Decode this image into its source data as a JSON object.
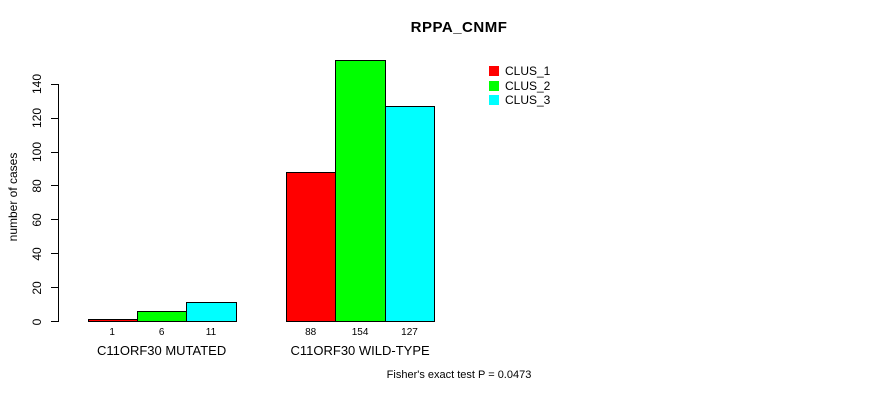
{
  "chart_data": {
    "type": "bar",
    "title": "RPPA_CNMF",
    "xlabel": "",
    "ylabel": "number of cases",
    "categories": [
      "C11ORF30 MUTATED",
      "C11ORF30 WILD-TYPE"
    ],
    "series": [
      {
        "name": "CLUS_1",
        "color": "#ff0000",
        "values": [
          1,
          88
        ]
      },
      {
        "name": "CLUS_2",
        "color": "#00ff00",
        "values": [
          6,
          154
        ]
      },
      {
        "name": "CLUS_3",
        "color": "#00ffff",
        "values": [
          11,
          127
        ]
      }
    ],
    "bar_value_labels": [
      [
        "1",
        "6",
        "11"
      ],
      [
        "88",
        "154",
        "127"
      ]
    ],
    "y_ticks": [
      0,
      20,
      40,
      60,
      80,
      100,
      120,
      140
    ],
    "ylim": [
      0,
      155
    ],
    "grid": false,
    "legend_position": "top-right-inside",
    "bar_border_color": "#000000",
    "annotation": "Fisher's exact test P = 0.0473"
  },
  "colors": {
    "background": "#ffffff",
    "axis": "#000000",
    "text": "#000000"
  }
}
